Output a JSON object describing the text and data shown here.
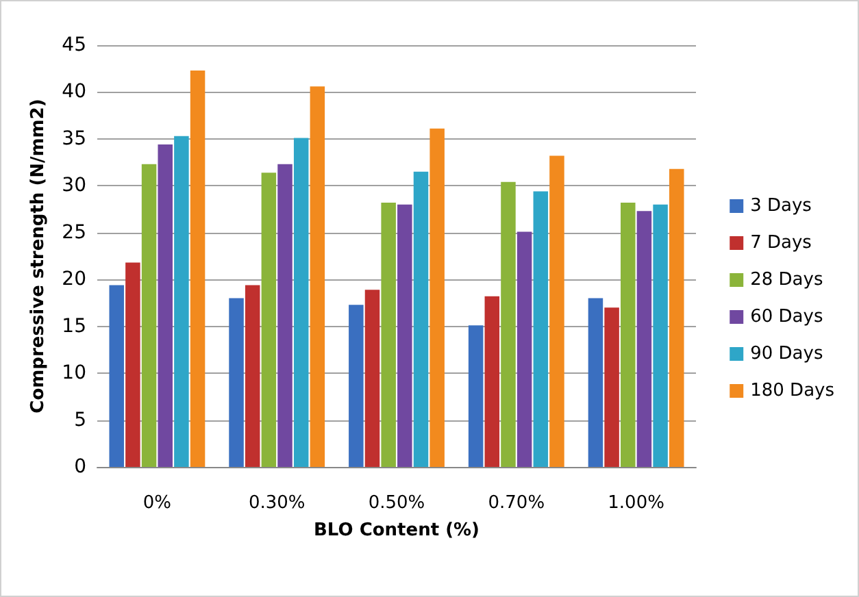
{
  "chart_data": {
    "type": "bar",
    "xlabel": "BLO Content (%)",
    "ylabel": "Compressive strength (N/mm2)",
    "categories": [
      "0%",
      "0.30%",
      "0.50%",
      "0.70%",
      "1.00%"
    ],
    "series": [
      {
        "name": "3 Days",
        "color": "#3a6fc0",
        "values": [
          19.4,
          18,
          17.3,
          15.1,
          18
        ]
      },
      {
        "name": "7 Days",
        "color": "#c0302e",
        "values": [
          21.8,
          19.4,
          18.9,
          18.2,
          17
        ]
      },
      {
        "name": "28 Days",
        "color": "#8bb43a",
        "values": [
          32.3,
          31.4,
          28.2,
          30.4,
          28.2
        ]
      },
      {
        "name": "60 Days",
        "color": "#7048a0",
        "values": [
          34.4,
          32.3,
          28,
          25.1,
          27.3
        ]
      },
      {
        "name": "90 Days",
        "color": "#2ea6c8",
        "values": [
          35.3,
          35.1,
          31.5,
          29.4,
          28
        ]
      },
      {
        "name": "180 Days",
        "color": "#f28a1e",
        "values": [
          42.3,
          40.6,
          36.1,
          33.2,
          31.8
        ]
      }
    ],
    "ylim": [
      0,
      45
    ],
    "yticks": [
      0,
      5,
      10,
      15,
      20,
      25,
      30,
      35,
      40,
      45
    ],
    "grid": "y",
    "legend": "right"
  }
}
